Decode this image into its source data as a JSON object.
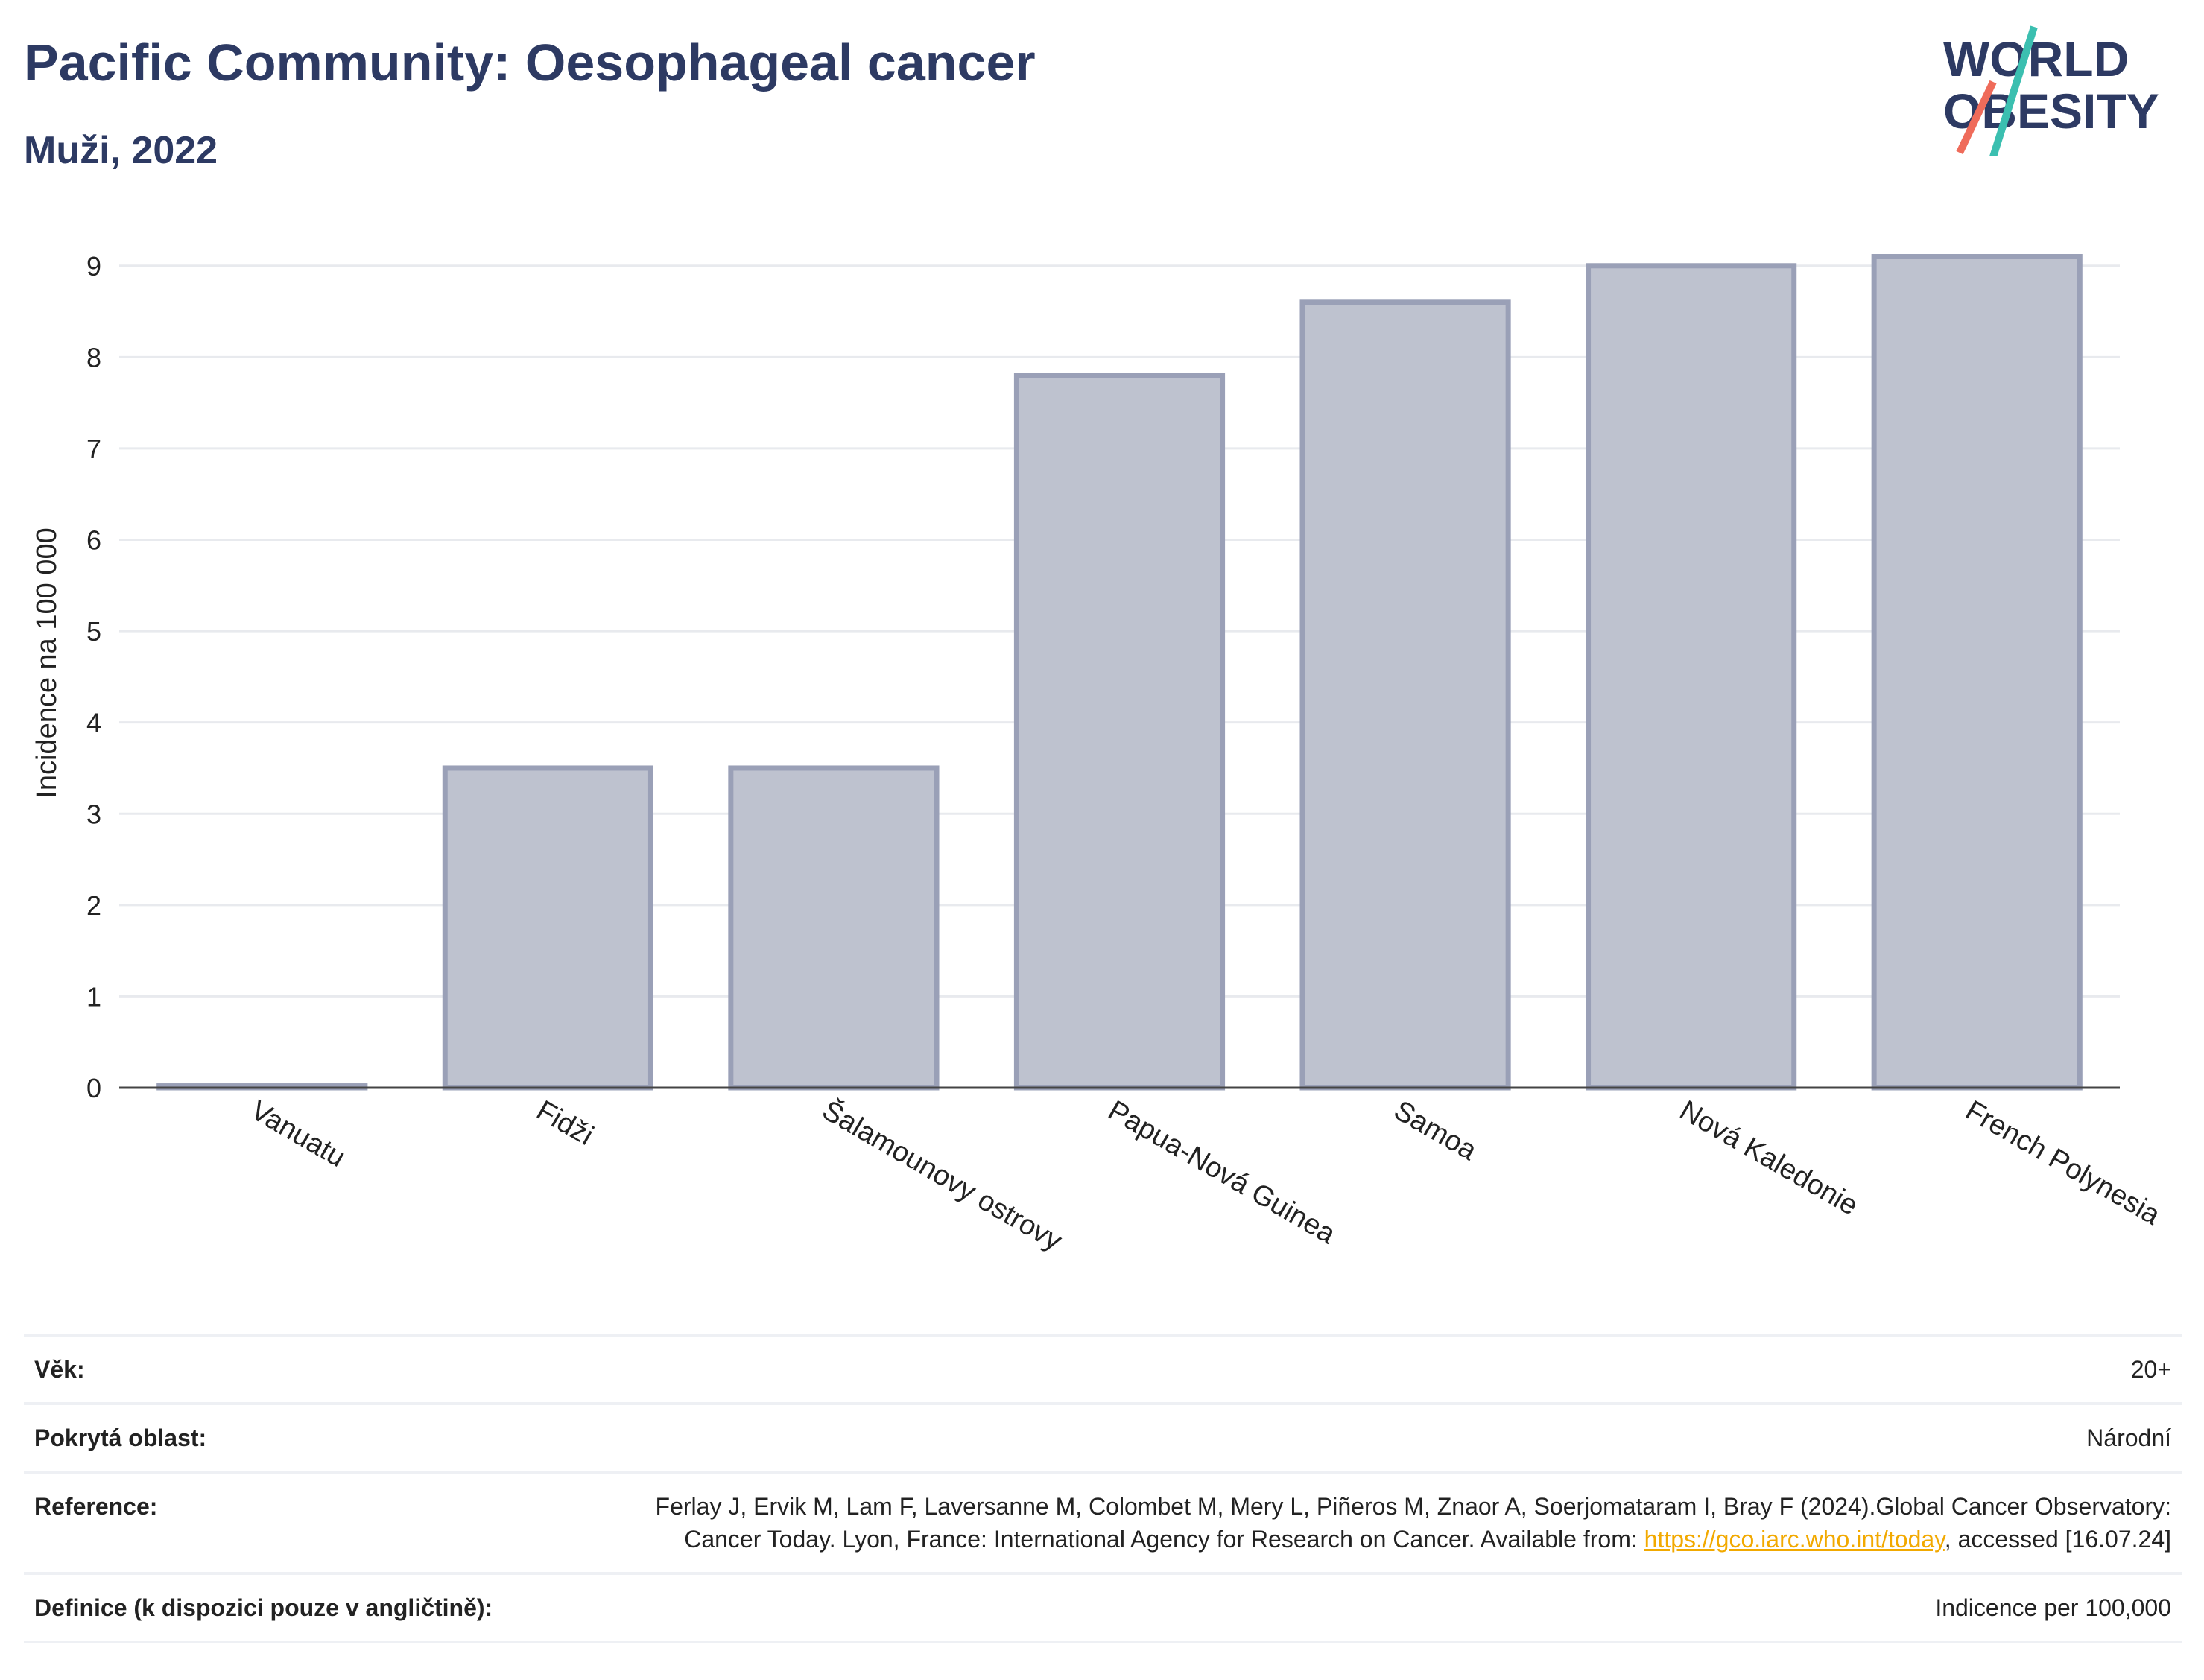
{
  "header": {
    "title": "Pacific Community: Oesophageal cancer",
    "subtitle": "Muži, 2022"
  },
  "logo": {
    "line1": "WORLD",
    "line2": "OBESITY",
    "colors": {
      "text": "#2d3a63",
      "slash_top": "#3bbfb0",
      "slash_bottom": "#ef6b5a"
    }
  },
  "chart_data": {
    "type": "bar",
    "categories": [
      "Vanuatu",
      "Fidži",
      "Šalamounovy ostrovy",
      "Papua-Nová Guinea",
      "Samoa",
      "Nová Kaledonie",
      "French Polynesia"
    ],
    "values": [
      0.02,
      3.5,
      3.5,
      7.8,
      8.6,
      9.0,
      9.1
    ],
    "ylabel": "Incidence na 100 000",
    "xlabel": "",
    "ylim": [
      0,
      9.3
    ],
    "yticks": [
      0,
      1,
      2,
      3,
      4,
      5,
      6,
      7,
      8,
      9
    ],
    "grid": true,
    "bar_fill": "#bec2cf",
    "bar_stroke": "#9aa0b7"
  },
  "meta": [
    {
      "label": "Věk:",
      "value": "20+"
    },
    {
      "label": "Pokrytá oblast:",
      "value": "Národní"
    },
    {
      "label": "Reference:",
      "value_pre": "Ferlay J, Ervik M, Lam F, Laversanne M, Colombet M, Mery L, Piñeros M, Znaor A, Soerjomataram I, Bray F (2024).Global Cancer Observatory: Cancer Today. Lyon, France: International Agency for Research on Cancer. Available from: ",
      "link": "https://gco.iarc.who.int/today",
      "value_post": ", accessed [16.07.24]"
    },
    {
      "label": "Definice (k dispozici pouze v angličtině):",
      "value": "Indicence per 100,000"
    }
  ]
}
